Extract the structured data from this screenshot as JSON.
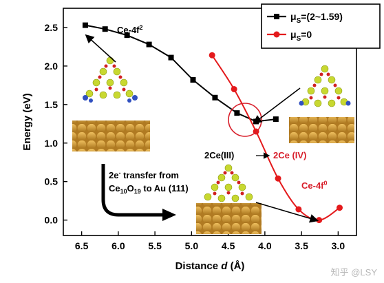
{
  "watermark": "知乎 @LSY",
  "chart_data": {
    "type": "line",
    "xlabel_prefix": "Distance ",
    "xlabel_var": "d",
    "xlabel_unit": " (Å)",
    "ylabel": "Energy (eV)",
    "xlim": [
      6.75,
      2.75
    ],
    "ylim": [
      -0.2,
      2.75
    ],
    "x_ticks": [
      6.5,
      6.0,
      5.5,
      5.0,
      4.5,
      4.0,
      3.5,
      3.0
    ],
    "x_tick_labels": [
      "6.5",
      "6.0",
      "5.5",
      "5.0",
      "4.5",
      "4.0",
      "3.5",
      "3.0"
    ],
    "y_ticks": [
      0.0,
      0.5,
      1.0,
      1.5,
      2.0,
      2.5
    ],
    "y_tick_labels": [
      "0.0",
      "0.5",
      "1.0",
      "1.5",
      "2.0",
      "2.5"
    ],
    "legend_position": "top-right",
    "series": [
      {
        "name": "μS=(2~1.59)",
        "name_parts": {
          "mu": "μ",
          "sub": "S",
          "rest": "=(2~1.59)"
        },
        "color": "#000000",
        "marker": "square",
        "x": [
          6.45,
          6.18,
          5.88,
          5.58,
          5.28,
          4.98,
          4.68,
          4.38,
          4.12,
          3.85
        ],
        "y": [
          2.53,
          2.48,
          2.4,
          2.28,
          2.11,
          1.82,
          1.59,
          1.39,
          1.28,
          1.31
        ]
      },
      {
        "name": "μS=0",
        "name_parts": {
          "mu": "μ",
          "sub": "S",
          "rest": "=0"
        },
        "color": "#e41a1c",
        "marker": "circle",
        "x": [
          4.72,
          4.42,
          4.12,
          3.82,
          3.54,
          3.26,
          2.98
        ],
        "y": [
          2.14,
          1.7,
          1.15,
          0.54,
          0.14,
          0.0,
          0.16
        ]
      }
    ],
    "annotations": {
      "ce4f2": {
        "base": "Ce-4f",
        "sup": "2"
      },
      "ce4f0": {
        "base": "Ce-4f",
        "sup": "0"
      },
      "cell_left": "2Ce(III)",
      "cell_right": "2Ce (IV)",
      "transfer_line1_base": "2e",
      "transfer_line1_sup": "-",
      "transfer_line1_rest": " transfer from",
      "transfer_line2_a": "Ce",
      "transfer_line2_sub1": "10",
      "transfer_line2_b": "O",
      "transfer_line2_sub2": "19",
      "transfer_line2_c": " to Au (111)"
    }
  }
}
